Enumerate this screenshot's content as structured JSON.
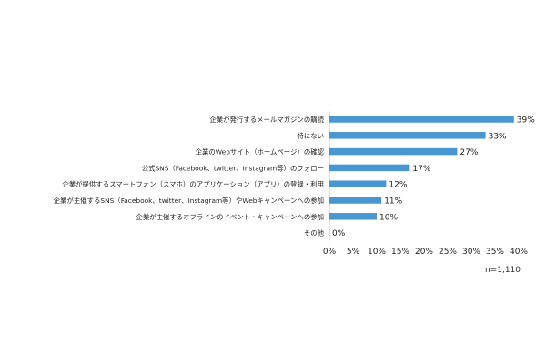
{
  "chart_data": {
    "type": "bar",
    "orientation": "horizontal",
    "categories": [
      "企業が発行するメールマガジンの購読",
      "特にない",
      "企業のWebサイト（ホームページ）の確認",
      "公式SNS（Facebook、twitter、Instagram等）のフォロー",
      "企業が提供するスマートフォン（スマホ）のアプリケーション（アプリ）の登録・利用",
      "企業が主催するSNS（Facebook、twitter、Instagram等）やWebキャンペーンへの参加",
      "企業が主催するオフラインのイベント・キャンペーンへの参加",
      "その他"
    ],
    "values": [
      39,
      33,
      27,
      17,
      12,
      11,
      10,
      0
    ],
    "value_labels": [
      "39%",
      "33%",
      "27%",
      "17%",
      "12%",
      "11%",
      "10%",
      "0%"
    ],
    "x_ticks": [
      0,
      5,
      10,
      15,
      20,
      25,
      30,
      35,
      40
    ],
    "x_tick_labels": [
      "0%",
      "5%",
      "10%",
      "15%",
      "20%",
      "25%",
      "30%",
      "35%",
      "40%"
    ],
    "xlim": [
      0,
      40
    ],
    "grid": false,
    "bar_color": "#4a96d0",
    "note": "n=1,110"
  }
}
